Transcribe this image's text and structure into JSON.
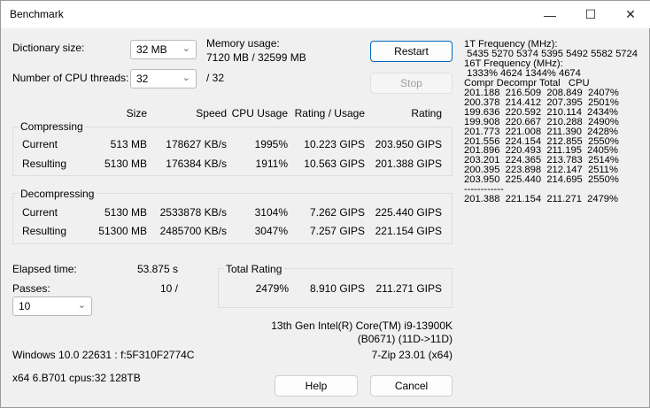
{
  "window": {
    "title": "Benchmark",
    "minimize": "—",
    "maximize": "☐",
    "close": "✕"
  },
  "settings": {
    "dict_label": "Dictionary size:",
    "dict_value": "32 MB",
    "threads_label": "Number of CPU threads:",
    "threads_value": "32",
    "threads_max": "/ 32",
    "mem_label": "Memory usage:",
    "mem_value": "7120 MB / 32599 MB"
  },
  "buttons": {
    "restart": "Restart",
    "stop": "Stop",
    "help": "Help",
    "cancel": "Cancel"
  },
  "columns": [
    "Size",
    "Speed",
    "CPU Usage",
    "Rating / Usage",
    "Rating"
  ],
  "compressing": {
    "title": "Compressing",
    "rows": [
      {
        "label": "Current",
        "cells": [
          "513 MB",
          "178627 KB/s",
          "1995%",
          "10.223 GIPS",
          "203.950 GIPS"
        ]
      },
      {
        "label": "Resulting",
        "cells": [
          "5130 MB",
          "176384 KB/s",
          "1911%",
          "10.563 GIPS",
          "201.388 GIPS"
        ]
      }
    ]
  },
  "decompressing": {
    "title": "Decompressing",
    "rows": [
      {
        "label": "Current",
        "cells": [
          "5130 MB",
          "2533878 KB/s",
          "3104%",
          "7.262 GIPS",
          "225.440 GIPS"
        ]
      },
      {
        "label": "Resulting",
        "cells": [
          "51300 MB",
          "2485700 KB/s",
          "3047%",
          "7.257 GIPS",
          "221.154 GIPS"
        ]
      }
    ]
  },
  "elapsed": {
    "label": "Elapsed time:",
    "value": "53.875 s"
  },
  "passes": {
    "label": "Passes:",
    "value": "10 /",
    "combo": "10"
  },
  "total": {
    "title": "Total Rating",
    "cpu": "2479%",
    "rating_usage": "8.910 GIPS",
    "rating": "211.271 GIPS"
  },
  "cpu_info": {
    "line1": "13th Gen Intel(R) Core(TM) i9-13900K",
    "line2": "(B0671) (11D->11D)",
    "version": "7-Zip 23.01 (x64)"
  },
  "sys_info": {
    "os": "Windows 10.0 22631 : f:5F310F2774C",
    "arch": "x64 6.B701 cpus:32 128TB"
  },
  "log": [
    "1T Frequency (MHz):",
    " 5435 5270 5374 5395 5492 5582 5724",
    "16T Frequency (MHz):",
    " 1333% 4624 1344% 4674",
    "Compr Decompr Total   CPU",
    "201.188  216.509  208.849  2407%",
    "200.378  214.412  207.395  2501%",
    "199.636  220.592  210.114  2434%",
    "199.908  220.667  210.288  2490%",
    "201.773  221.008  211.390  2428%",
    "201.556  224.154  212.855  2550%",
    "201.896  220.493  211.195  2405%",
    "203.201  224.365  213.783  2514%",
    "200.395  223.898  212.147  2511%",
    "203.950  225.440  214.695  2550%",
    "------------",
    "201.388  221.154  211.271  2479%"
  ]
}
